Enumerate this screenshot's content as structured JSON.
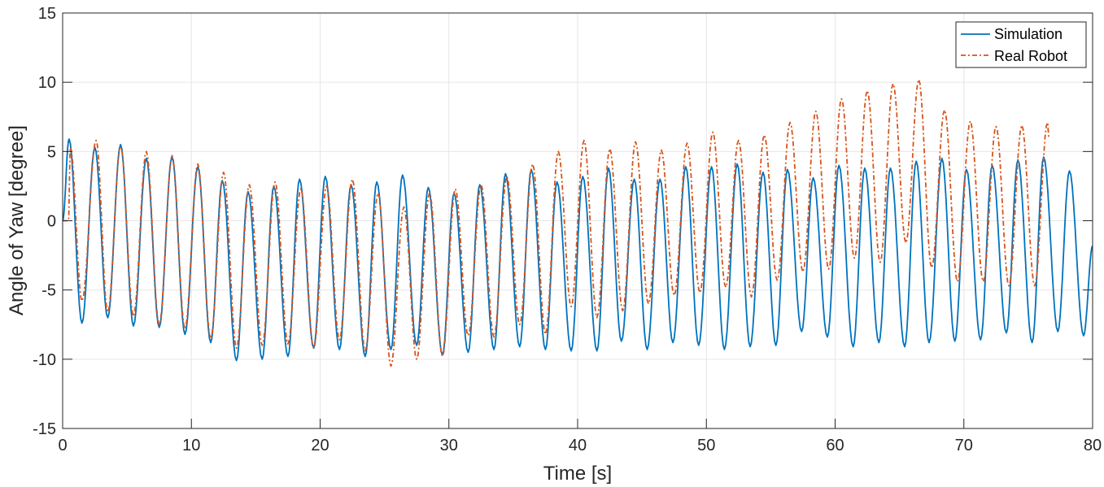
{
  "chart_data": {
    "type": "line",
    "title": "",
    "xlabel": "Time [s]",
    "ylabel": "Angle of Yaw [degree]",
    "xlim": [
      0,
      80
    ],
    "ylim": [
      -15,
      15
    ],
    "xticks": [
      0,
      10,
      20,
      30,
      40,
      50,
      60,
      70,
      80
    ],
    "yticks": [
      -15,
      -10,
      -5,
      0,
      5,
      10,
      15
    ],
    "grid": true,
    "legend_position": "top-right",
    "note_on_points": "extrema (peaks/troughs) of oscillating signals, [time s, angle degree]",
    "series": [
      {
        "name": "Simulation",
        "color": "#0072BD",
        "style": "solid",
        "points": [
          [
            0,
            0
          ],
          [
            0.5,
            5.9
          ],
          [
            1.5,
            -7.4
          ],
          [
            2.5,
            5.3
          ],
          [
            3.5,
            -7.0
          ],
          [
            4.5,
            5.5
          ],
          [
            5.5,
            -7.6
          ],
          [
            6.5,
            4.5
          ],
          [
            7.5,
            -7.7
          ],
          [
            8.5,
            4.6
          ],
          [
            9.5,
            -8.2
          ],
          [
            10.5,
            3.9
          ],
          [
            11.5,
            -8.8
          ],
          [
            12.4,
            2.9
          ],
          [
            13.5,
            -10.1
          ],
          [
            14.4,
            2.1
          ],
          [
            15.5,
            -10.0
          ],
          [
            16.4,
            2.5
          ],
          [
            17.5,
            -9.8
          ],
          [
            18.4,
            3.0
          ],
          [
            19.5,
            -9.2
          ],
          [
            20.4,
            3.2
          ],
          [
            21.5,
            -9.3
          ],
          [
            22.4,
            2.6
          ],
          [
            23.5,
            -9.8
          ],
          [
            24.4,
            2.8
          ],
          [
            25.5,
            -9.3
          ],
          [
            26.4,
            3.3
          ],
          [
            27.5,
            -9.0
          ],
          [
            28.4,
            2.4
          ],
          [
            29.5,
            -9.7
          ],
          [
            30.4,
            2.0
          ],
          [
            31.5,
            -9.5
          ],
          [
            32.4,
            2.6
          ],
          [
            33.5,
            -9.3
          ],
          [
            34.4,
            3.4
          ],
          [
            35.5,
            -9.1
          ],
          [
            36.4,
            3.7
          ],
          [
            37.5,
            -9.3
          ],
          [
            38.4,
            2.8
          ],
          [
            39.5,
            -9.4
          ],
          [
            40.4,
            3.2
          ],
          [
            41.5,
            -9.4
          ],
          [
            42.4,
            3.8
          ],
          [
            43.4,
            -8.7
          ],
          [
            44.4,
            3.0
          ],
          [
            45.4,
            -9.3
          ],
          [
            46.4,
            3.0
          ],
          [
            47.4,
            -8.8
          ],
          [
            48.4,
            3.9
          ],
          [
            49.4,
            -9.0
          ],
          [
            50.4,
            3.9
          ],
          [
            51.4,
            -9.3
          ],
          [
            52.4,
            4.1
          ],
          [
            53.4,
            -9.1
          ],
          [
            54.4,
            3.5
          ],
          [
            55.4,
            -9.0
          ],
          [
            56.3,
            3.7
          ],
          [
            57.4,
            -8.0
          ],
          [
            58.3,
            3.1
          ],
          [
            59.4,
            -8.4
          ],
          [
            60.3,
            4.0
          ],
          [
            61.4,
            -9.1
          ],
          [
            62.3,
            3.8
          ],
          [
            63.4,
            -8.8
          ],
          [
            64.3,
            3.8
          ],
          [
            65.4,
            -9.1
          ],
          [
            66.3,
            4.3
          ],
          [
            67.3,
            -8.8
          ],
          [
            68.3,
            4.5
          ],
          [
            69.3,
            -8.7
          ],
          [
            70.2,
            3.7
          ],
          [
            71.3,
            -8.6
          ],
          [
            72.2,
            4.0
          ],
          [
            73.3,
            -8.1
          ],
          [
            74.2,
            4.4
          ],
          [
            75.3,
            -8.8
          ],
          [
            76.2,
            4.6
          ],
          [
            77.3,
            -8.0
          ],
          [
            78.2,
            3.6
          ],
          [
            79.3,
            -8.3
          ],
          [
            80,
            -1.8
          ]
        ]
      },
      {
        "name": "Real Robot",
        "color": "#D95319",
        "style": "dash-dot",
        "points": [
          [
            0,
            0
          ],
          [
            0.45,
            0
          ],
          [
            0.6,
            5.3
          ],
          [
            1.5,
            -5.8
          ],
          [
            2.6,
            5.8
          ],
          [
            3.5,
            -6.6
          ],
          [
            4.5,
            5.4
          ],
          [
            5.5,
            -6.9
          ],
          [
            6.5,
            5.0
          ],
          [
            7.5,
            -7.5
          ],
          [
            8.5,
            4.7
          ],
          [
            9.5,
            -7.8
          ],
          [
            10.5,
            4.1
          ],
          [
            11.5,
            -8.5
          ],
          [
            12.5,
            3.5
          ],
          [
            13.5,
            -9.2
          ],
          [
            14.5,
            2.6
          ],
          [
            15.5,
            -9.0
          ],
          [
            16.5,
            2.8
          ],
          [
            17.5,
            -8.9
          ],
          [
            18.5,
            2.3
          ],
          [
            19.5,
            -9.2
          ],
          [
            20.5,
            2.5
          ],
          [
            21.5,
            -8.6
          ],
          [
            22.5,
            3.0
          ],
          [
            23.5,
            -9.4
          ],
          [
            24.5,
            2.0
          ],
          [
            25.5,
            -10.5
          ],
          [
            26.5,
            1.0
          ],
          [
            27.5,
            -10.0
          ],
          [
            28.5,
            2.0
          ],
          [
            29.5,
            -9.8
          ],
          [
            30.5,
            2.3
          ],
          [
            31.5,
            -8.3
          ],
          [
            32.5,
            2.6
          ],
          [
            33.5,
            -8.4
          ],
          [
            34.5,
            3.2
          ],
          [
            35.5,
            -7.5
          ],
          [
            36.5,
            4.1
          ],
          [
            37.5,
            -8.2
          ],
          [
            38.5,
            5.0
          ],
          [
            39.5,
            -6.2
          ],
          [
            40.5,
            5.8
          ],
          [
            41.5,
            -7.0
          ],
          [
            42.5,
            5.2
          ],
          [
            43.5,
            -6.5
          ],
          [
            44.5,
            5.7
          ],
          [
            45.5,
            -6.0
          ],
          [
            46.5,
            5.1
          ],
          [
            47.5,
            -5.4
          ],
          [
            48.5,
            5.6
          ],
          [
            49.5,
            -5.2
          ],
          [
            50.5,
            6.4
          ],
          [
            51.5,
            -4.8
          ],
          [
            52.5,
            5.8
          ],
          [
            53.5,
            -5.5
          ],
          [
            54.5,
            6.2
          ],
          [
            55.5,
            -4.3
          ],
          [
            56.5,
            7.1
          ],
          [
            57.5,
            -3.7
          ],
          [
            58.5,
            7.9
          ],
          [
            59.5,
            -3.5
          ],
          [
            60.5,
            8.8
          ],
          [
            61.5,
            -2.7
          ],
          [
            62.5,
            9.4
          ],
          [
            63.5,
            -3.0
          ],
          [
            64.5,
            9.9
          ],
          [
            65.5,
            -1.6
          ],
          [
            66.5,
            10.2
          ],
          [
            67.5,
            -3.4
          ],
          [
            68.5,
            8.0
          ],
          [
            69.5,
            -4.4
          ],
          [
            70.5,
            7.2
          ],
          [
            71.5,
            -4.4
          ],
          [
            72.5,
            6.8
          ],
          [
            73.5,
            -4.7
          ],
          [
            74.5,
            6.9
          ],
          [
            75.5,
            -4.7
          ],
          [
            76.5,
            7.1
          ],
          [
            76.6,
            6.0
          ]
        ]
      }
    ]
  }
}
